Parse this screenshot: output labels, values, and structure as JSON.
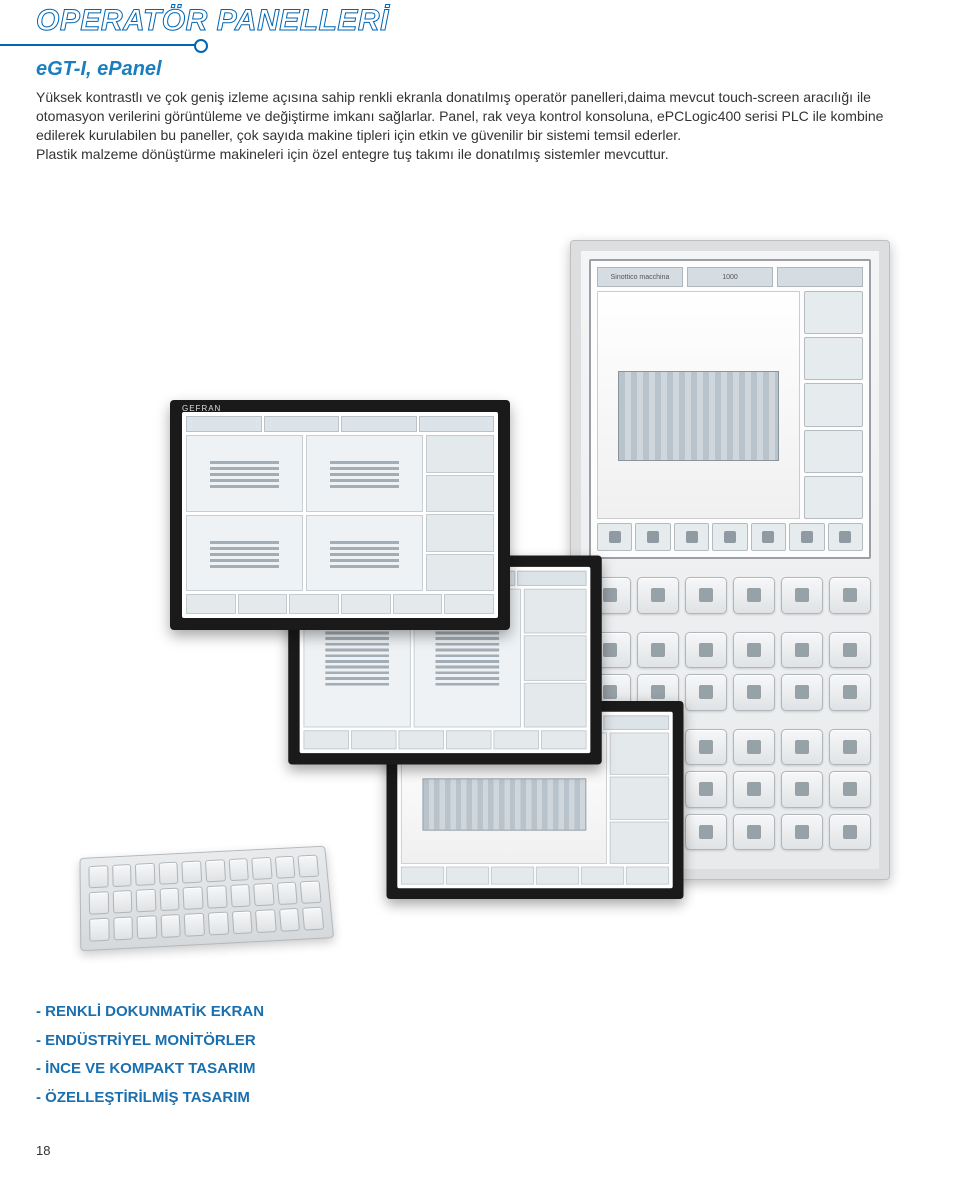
{
  "header": {
    "title": "OPERATÖR PANELLERİ",
    "subtitle": "eGT-I, ePanel"
  },
  "body_paragraph": "Yüksek kontrastlı ve çok geniş izleme açısına sahip renkli ekranla donatılmış operatör panelleri,daima mevcut touch-screen aracılığı ile otomasyon verilerini görüntüleme ve değiştirme imkanı sağlarlar. Panel, rak veya kontrol konsoluna, ePCLogic400 serisi PLC ile kombine edilerek kurulabilen bu paneller, çok sayıda makine tipleri için etkin ve güvenilir bir sistemi temsil ederler.\nPlastik malzeme dönüştürme makineleri için özel entegre tuş takımı ile donatılmış sistemler mevcuttur.",
  "monitor_brand": "GEFRAN",
  "screen_labels": {
    "tab1": "Sinottico macchina",
    "value": "1000"
  },
  "features": [
    "- RENKLİ DOKUNMATİK EKRAN",
    "- ENDÜSTRİYEL MONİTÖRLER",
    "- İNCE VE KOMPAKT TASARIM",
    "- ÖZELLEŞTİRİLMİŞ TASARIM"
  ],
  "page_number": "18",
  "colors": {
    "accent_blue": "#0066b3",
    "subtitle_blue": "#1b7fbf",
    "feature_blue": "#1a6faf",
    "text": "#333333",
    "panel_bg": "#e8eaec"
  }
}
